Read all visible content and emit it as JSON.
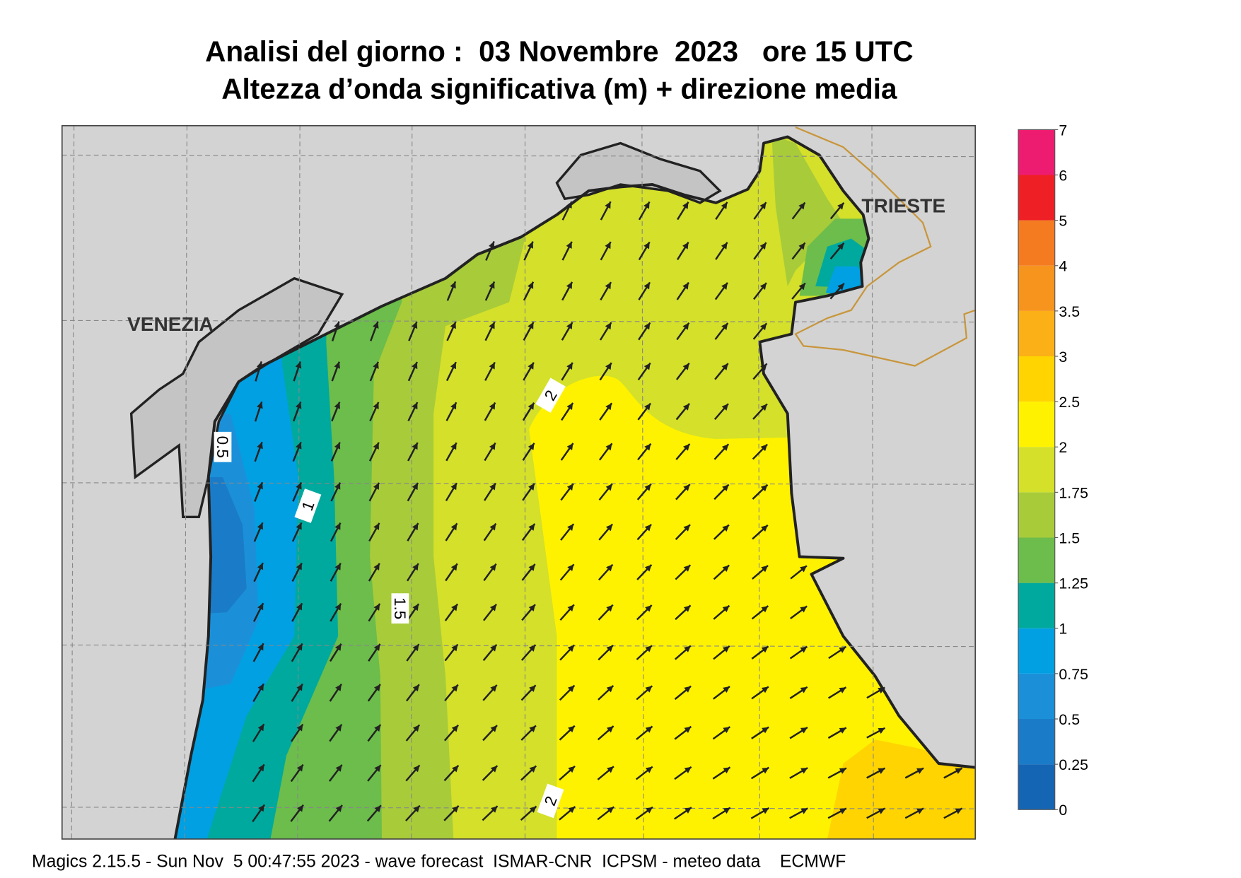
{
  "header": {
    "title": "Analisi del giorno :  03 Novembre  2023   ore 15 UTC",
    "subtitle": "Altezza d’onda significativa (m) + direzione media"
  },
  "places": [
    "VENEZIA",
    "TRIESTE"
  ],
  "contour_labels": [
    "0.5",
    "1",
    "1.5",
    "2",
    "2"
  ],
  "colorbar": {
    "levels": [
      0,
      0.25,
      0.5,
      0.75,
      1,
      1.25,
      1.5,
      1.75,
      2,
      2.5,
      3,
      3.5,
      4,
      5,
      6,
      7
    ],
    "colors": [
      "#1565b5",
      "#1a7cc8",
      "#1b90d9",
      "#00a0e3",
      "#00a99d",
      "#6cbd4b",
      "#a8cb3a",
      "#d4e029",
      "#fff200",
      "#ffd400",
      "#fbb017",
      "#f7941d",
      "#f47b20",
      "#ee2025",
      "#ee1c70"
    ]
  },
  "footer": "Magics 2.15.5 - Sun Nov  5 00:47:55 2023 - wave forecast  ISMAR-CNR  ICPSM - meteo data    ECMWF"
}
